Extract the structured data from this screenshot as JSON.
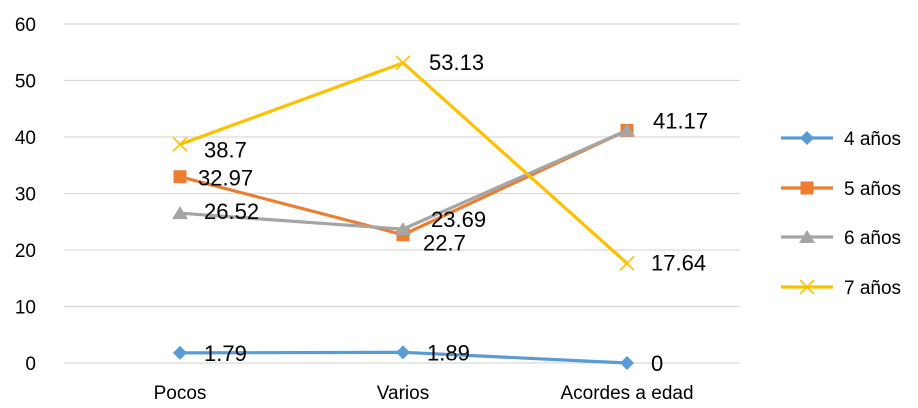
{
  "chart_data": {
    "type": "line",
    "categories": [
      "Pocos",
      "Varios",
      "Acordes a edad"
    ],
    "ylim": [
      0,
      60
    ],
    "yticks": [
      "0",
      "10",
      "20",
      "30",
      "40",
      "50",
      "60"
    ],
    "grid": true,
    "legend_position": "right",
    "series": [
      {
        "name": "4 años",
        "values": [
          1.79,
          1.89,
          0
        ],
        "labels": [
          "1.79",
          "1.89",
          "0"
        ],
        "color": "#5b9bd5",
        "marker": "diamond"
      },
      {
        "name": "5 años",
        "values": [
          32.97,
          22.7,
          41.17
        ],
        "labels": [
          "32.97",
          "22.7",
          "41.17"
        ],
        "color": "#ed7d31",
        "marker": "square"
      },
      {
        "name": "6 años",
        "values": [
          26.52,
          23.69,
          41.17
        ],
        "labels": [
          "26.52",
          "23.69",
          ""
        ],
        "color": "#a5a5a5",
        "marker": "triangle"
      },
      {
        "name": "7 años",
        "values": [
          38.7,
          53.13,
          17.64
        ],
        "labels": [
          "38.7",
          "53.13",
          "17.64"
        ],
        "color": "#ffc000",
        "marker": "x"
      }
    ]
  }
}
